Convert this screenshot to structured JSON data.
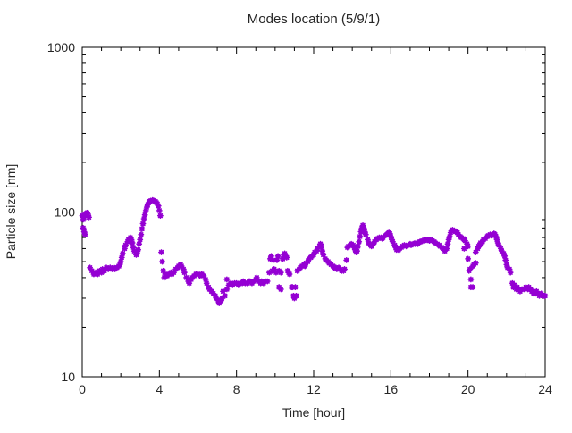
{
  "chart_data": {
    "type": "scatter",
    "title": "Modes location (5/9/1)",
    "xlabel": "Time [hour]",
    "ylabel": "Particle size [nm]",
    "xlim": [
      0,
      24
    ],
    "ylim": [
      10,
      1000
    ],
    "yscale": "log",
    "xticks": [
      0,
      4,
      8,
      12,
      16,
      20,
      24
    ],
    "x_minor_step": 1,
    "yticks": [
      10,
      100,
      1000
    ],
    "grid": "off",
    "legend": "none",
    "marker": "asterisk",
    "marker_color": "#9400D3",
    "axis_color": "#000000",
    "background_color": "#ffffff",
    "points": [
      [
        0.0,
        95
      ],
      [
        0.05,
        90
      ],
      [
        0.05,
        80
      ],
      [
        0.1,
        93
      ],
      [
        0.1,
        76
      ],
      [
        0.15,
        96
      ],
      [
        0.15,
        73
      ],
      [
        0.2,
        98
      ],
      [
        0.25,
        99
      ],
      [
        0.3,
        97
      ],
      [
        0.35,
        93
      ],
      [
        0.4,
        46
      ],
      [
        0.5,
        44
      ],
      [
        0.6,
        42
      ],
      [
        0.7,
        43
      ],
      [
        0.8,
        42
      ],
      [
        0.9,
        44
      ],
      [
        1.0,
        43
      ],
      [
        1.05,
        45
      ],
      [
        1.15,
        44
      ],
      [
        1.25,
        46
      ],
      [
        1.35,
        45
      ],
      [
        1.45,
        46
      ],
      [
        1.55,
        45
      ],
      [
        1.65,
        46
      ],
      [
        1.7,
        45
      ],
      [
        1.8,
        46
      ],
      [
        1.9,
        47
      ],
      [
        1.95,
        48
      ],
      [
        2.0,
        50
      ],
      [
        2.05,
        53
      ],
      [
        2.1,
        56
      ],
      [
        2.2,
        60
      ],
      [
        2.25,
        63
      ],
      [
        2.35,
        66
      ],
      [
        2.4,
        68
      ],
      [
        2.5,
        70
      ],
      [
        2.55,
        68
      ],
      [
        2.6,
        65
      ],
      [
        2.65,
        61
      ],
      [
        2.7,
        58
      ],
      [
        2.8,
        55
      ],
      [
        2.85,
        56
      ],
      [
        2.9,
        59
      ],
      [
        2.95,
        64
      ],
      [
        3.0,
        68
      ],
      [
        3.05,
        73
      ],
      [
        3.1,
        79
      ],
      [
        3.15,
        85
      ],
      [
        3.2,
        91
      ],
      [
        3.25,
        96
      ],
      [
        3.3,
        102
      ],
      [
        3.35,
        107
      ],
      [
        3.4,
        111
      ],
      [
        3.45,
        114
      ],
      [
        3.5,
        116
      ],
      [
        3.55,
        117
      ],
      [
        3.65,
        118
      ],
      [
        3.7,
        117
      ],
      [
        3.8,
        116
      ],
      [
        3.85,
        114
      ],
      [
        3.9,
        112
      ],
      [
        3.95,
        109
      ],
      [
        4.0,
        102
      ],
      [
        4.05,
        95
      ],
      [
        4.1,
        57
      ],
      [
        4.15,
        50
      ],
      [
        4.2,
        44
      ],
      [
        4.25,
        40
      ],
      [
        4.3,
        42
      ],
      [
        4.4,
        41
      ],
      [
        4.5,
        42
      ],
      [
        4.6,
        43
      ],
      [
        4.65,
        42
      ],
      [
        4.75,
        43
      ],
      [
        4.85,
        45
      ],
      [
        4.95,
        46
      ],
      [
        5.0,
        47
      ],
      [
        5.1,
        48
      ],
      [
        5.15,
        47
      ],
      [
        5.25,
        45
      ],
      [
        5.3,
        43
      ],
      [
        5.4,
        40
      ],
      [
        5.5,
        38
      ],
      [
        5.55,
        37
      ],
      [
        5.65,
        39
      ],
      [
        5.7,
        40
      ],
      [
        5.8,
        41
      ],
      [
        5.9,
        42
      ],
      [
        6.0,
        42
      ],
      [
        6.1,
        41
      ],
      [
        6.2,
        42
      ],
      [
        6.3,
        41
      ],
      [
        6.4,
        39
      ],
      [
        6.45,
        37
      ],
      [
        6.55,
        35
      ],
      [
        6.6,
        34
      ],
      [
        6.7,
        33
      ],
      [
        6.8,
        32
      ],
      [
        6.9,
        31
      ],
      [
        6.95,
        30
      ],
      [
        7.05,
        29
      ],
      [
        7.1,
        28
      ],
      [
        7.2,
        29
      ],
      [
        7.25,
        30
      ],
      [
        7.3,
        33
      ],
      [
        7.4,
        31
      ],
      [
        7.5,
        39
      ],
      [
        7.5,
        34
      ],
      [
        7.6,
        36
      ],
      [
        7.7,
        37
      ],
      [
        7.8,
        36
      ],
      [
        7.9,
        37
      ],
      [
        8.0,
        37
      ],
      [
        8.1,
        36
      ],
      [
        8.2,
        37
      ],
      [
        8.3,
        37
      ],
      [
        8.35,
        38
      ],
      [
        8.45,
        37
      ],
      [
        8.55,
        37
      ],
      [
        8.65,
        38
      ],
      [
        8.7,
        38
      ],
      [
        8.8,
        37
      ],
      [
        8.9,
        38
      ],
      [
        9.0,
        39
      ],
      [
        9.05,
        40
      ],
      [
        9.15,
        38
      ],
      [
        9.25,
        37
      ],
      [
        9.3,
        38
      ],
      [
        9.4,
        37
      ],
      [
        9.5,
        38
      ],
      [
        9.6,
        38
      ],
      [
        9.7,
        43
      ],
      [
        9.75,
        52
      ],
      [
        9.8,
        54
      ],
      [
        9.85,
        44
      ],
      [
        9.9,
        51
      ],
      [
        9.95,
        45
      ],
      [
        10.05,
        43
      ],
      [
        10.1,
        51
      ],
      [
        10.15,
        54
      ],
      [
        10.2,
        44
      ],
      [
        10.2,
        35
      ],
      [
        10.3,
        43
      ],
      [
        10.3,
        34
      ],
      [
        10.4,
        52
      ],
      [
        10.45,
        55
      ],
      [
        10.5,
        56
      ],
      [
        10.55,
        54
      ],
      [
        10.6,
        53
      ],
      [
        10.65,
        44
      ],
      [
        10.7,
        43
      ],
      [
        10.75,
        42
      ],
      [
        10.85,
        35
      ],
      [
        10.9,
        35
      ],
      [
        10.95,
        31
      ],
      [
        11.0,
        30
      ],
      [
        11.05,
        35
      ],
      [
        11.1,
        31
      ],
      [
        11.15,
        44
      ],
      [
        11.25,
        45
      ],
      [
        11.3,
        46
      ],
      [
        11.4,
        47
      ],
      [
        11.5,
        48
      ],
      [
        11.55,
        47
      ],
      [
        11.6,
        49
      ],
      [
        11.7,
        50
      ],
      [
        11.75,
        52
      ],
      [
        11.85,
        53
      ],
      [
        11.9,
        54
      ],
      [
        12.0,
        55
      ],
      [
        12.05,
        57
      ],
      [
        12.15,
        58
      ],
      [
        12.2,
        60
      ],
      [
        12.3,
        62
      ],
      [
        12.35,
        64
      ],
      [
        12.4,
        62
      ],
      [
        12.45,
        58
      ],
      [
        12.5,
        55
      ],
      [
        12.6,
        52
      ],
      [
        12.65,
        51
      ],
      [
        12.75,
        50
      ],
      [
        12.8,
        49
      ],
      [
        12.9,
        48
      ],
      [
        13.0,
        47
      ],
      [
        13.05,
        46
      ],
      [
        13.15,
        46
      ],
      [
        13.2,
        45
      ],
      [
        13.3,
        46
      ],
      [
        13.35,
        45
      ],
      [
        13.45,
        44
      ],
      [
        13.55,
        44
      ],
      [
        13.6,
        45
      ],
      [
        13.7,
        51
      ],
      [
        13.75,
        61
      ],
      [
        13.8,
        62
      ],
      [
        13.9,
        63
      ],
      [
        13.95,
        64
      ],
      [
        14.05,
        63
      ],
      [
        14.1,
        61
      ],
      [
        14.15,
        59
      ],
      [
        14.2,
        57
      ],
      [
        14.25,
        58
      ],
      [
        14.3,
        62
      ],
      [
        14.35,
        66
      ],
      [
        14.4,
        71
      ],
      [
        14.45,
        76
      ],
      [
        14.5,
        80
      ],
      [
        14.55,
        83
      ],
      [
        14.6,
        80
      ],
      [
        14.65,
        76
      ],
      [
        14.7,
        73
      ],
      [
        14.8,
        68
      ],
      [
        14.85,
        65
      ],
      [
        14.95,
        63
      ],
      [
        15.0,
        62
      ],
      [
        15.1,
        64
      ],
      [
        15.15,
        66
      ],
      [
        15.25,
        68
      ],
      [
        15.3,
        69
      ],
      [
        15.4,
        70
      ],
      [
        15.5,
        70
      ],
      [
        15.55,
        69
      ],
      [
        15.6,
        70
      ],
      [
        15.7,
        72
      ],
      [
        15.8,
        73
      ],
      [
        15.85,
        74
      ],
      [
        15.9,
        75
      ],
      [
        15.95,
        74
      ],
      [
        16.0,
        71
      ],
      [
        16.05,
        68
      ],
      [
        16.1,
        66
      ],
      [
        16.2,
        63
      ],
      [
        16.25,
        61
      ],
      [
        16.3,
        59
      ],
      [
        16.4,
        59
      ],
      [
        16.45,
        60
      ],
      [
        16.55,
        61
      ],
      [
        16.6,
        62
      ],
      [
        16.7,
        63
      ],
      [
        16.8,
        62
      ],
      [
        16.9,
        63
      ],
      [
        17.0,
        64
      ],
      [
        17.05,
        63
      ],
      [
        17.15,
        64
      ],
      [
        17.25,
        64
      ],
      [
        17.3,
        65
      ],
      [
        17.4,
        64
      ],
      [
        17.5,
        66
      ],
      [
        17.55,
        66
      ],
      [
        17.65,
        67
      ],
      [
        17.75,
        67
      ],
      [
        17.8,
        68
      ],
      [
        17.9,
        68
      ],
      [
        18.0,
        67
      ],
      [
        18.05,
        68
      ],
      [
        18.15,
        67
      ],
      [
        18.25,
        66
      ],
      [
        18.3,
        65
      ],
      [
        18.4,
        64
      ],
      [
        18.5,
        63
      ],
      [
        18.55,
        62
      ],
      [
        18.65,
        61
      ],
      [
        18.7,
        60
      ],
      [
        18.8,
        58
      ],
      [
        18.9,
        60
      ],
      [
        18.95,
        64
      ],
      [
        19.0,
        68
      ],
      [
        19.05,
        71
      ],
      [
        19.1,
        75
      ],
      [
        19.15,
        77
      ],
      [
        19.2,
        78
      ],
      [
        19.3,
        77
      ],
      [
        19.35,
        76
      ],
      [
        19.45,
        75
      ],
      [
        19.5,
        73
      ],
      [
        19.6,
        71
      ],
      [
        19.65,
        70
      ],
      [
        19.75,
        69
      ],
      [
        19.8,
        68
      ],
      [
        19.85,
        67
      ],
      [
        19.95,
        64
      ],
      [
        19.8,
        60
      ],
      [
        20.0,
        62
      ],
      [
        20.0,
        52
      ],
      [
        20.05,
        44
      ],
      [
        20.1,
        45
      ],
      [
        20.15,
        39
      ],
      [
        20.15,
        35
      ],
      [
        20.25,
        35
      ],
      [
        20.25,
        47
      ],
      [
        20.3,
        48
      ],
      [
        20.4,
        49
      ],
      [
        20.4,
        57
      ],
      [
        20.5,
        60
      ],
      [
        20.55,
        62
      ],
      [
        20.6,
        63
      ],
      [
        20.65,
        65
      ],
      [
        20.75,
        66
      ],
      [
        20.8,
        68
      ],
      [
        20.9,
        69
      ],
      [
        21.0,
        71
      ],
      [
        21.05,
        72
      ],
      [
        21.15,
        73
      ],
      [
        21.2,
        72
      ],
      [
        21.3,
        73
      ],
      [
        21.35,
        74
      ],
      [
        21.4,
        73
      ],
      [
        21.45,
        71
      ],
      [
        21.5,
        68
      ],
      [
        21.55,
        65
      ],
      [
        21.6,
        63
      ],
      [
        21.7,
        60
      ],
      [
        21.75,
        58
      ],
      [
        21.85,
        56
      ],
      [
        21.9,
        54
      ],
      [
        21.95,
        51
      ],
      [
        22.0,
        48
      ],
      [
        22.05,
        46
      ],
      [
        22.15,
        45
      ],
      [
        22.2,
        43
      ],
      [
        22.3,
        37
      ],
      [
        22.35,
        35
      ],
      [
        22.4,
        36
      ],
      [
        22.5,
        34
      ],
      [
        22.55,
        35
      ],
      [
        22.65,
        34
      ],
      [
        22.7,
        33
      ],
      [
        22.8,
        34
      ],
      [
        22.9,
        34
      ],
      [
        23.0,
        35
      ],
      [
        23.1,
        34
      ],
      [
        23.15,
        35
      ],
      [
        23.25,
        34
      ],
      [
        23.3,
        33
      ],
      [
        23.4,
        32
      ],
      [
        23.5,
        32
      ],
      [
        23.55,
        33
      ],
      [
        23.65,
        32
      ],
      [
        23.7,
        31
      ],
      [
        23.8,
        32
      ],
      [
        23.9,
        31
      ],
      [
        23.95,
        31
      ],
      [
        24.0,
        31
      ]
    ]
  }
}
